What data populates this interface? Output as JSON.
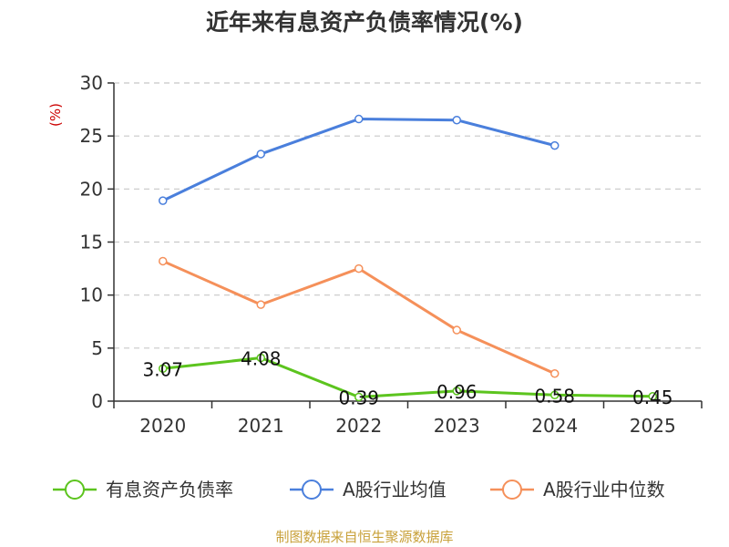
{
  "chart_data": {
    "type": "line",
    "title": "近年来有息资产负债率情况(%)",
    "ylabel": "(%)",
    "xlabel": "",
    "categories": [
      "2020",
      "2021",
      "2022",
      "2023",
      "2024",
      "2025"
    ],
    "ylim": [
      0,
      30
    ],
    "yticks": [
      "0",
      "5",
      "10",
      "15",
      "20",
      "25",
      "30"
    ],
    "grid": true,
    "legend_position": "bottom",
    "series": [
      {
        "name": "有息资产负债率",
        "color": "#5cc41e",
        "values": [
          3.07,
          4.08,
          0.39,
          0.96,
          0.58,
          0.45
        ],
        "labels": [
          "3.07",
          "4.08",
          "0.39",
          "0.96",
          "0.58",
          "0.45"
        ]
      },
      {
        "name": "A股行业均值",
        "color": "#4a7fdc",
        "values": [
          18.9,
          23.3,
          26.6,
          26.5,
          24.1,
          null
        ]
      },
      {
        "name": "A股行业中位数",
        "color": "#f5905a",
        "values": [
          13.2,
          9.1,
          12.5,
          6.7,
          2.6,
          null
        ]
      }
    ],
    "source": "制图数据来自恒生聚源数据库"
  }
}
